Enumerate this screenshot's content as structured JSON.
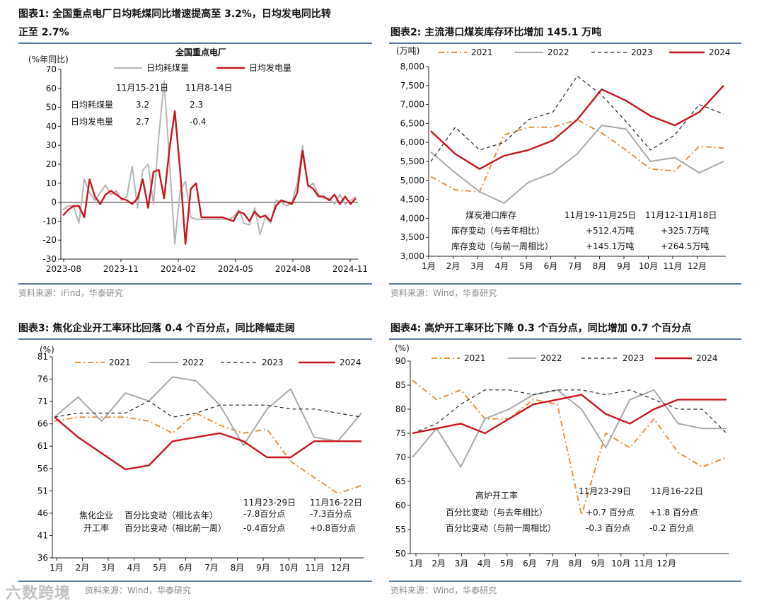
{
  "watermark": "六数跨境",
  "colors": {
    "y2021": "#e8903a",
    "y2022": "#a8a8a8",
    "y2023": "#222222",
    "y2024": "#c8161d",
    "coal": "#b5b5b5",
    "power": "#c8161d",
    "accent": "#5a7a9e"
  },
  "panels": [
    {
      "title_line1": "图表1:  全国重点电厂日均耗煤同比增速提高至 3.2%，日均发电同比转",
      "title_line2": "正至 2.7%",
      "source": "资料来源：iFind，华泰研究",
      "chart_data": {
        "type": "line",
        "title": "全国重点电厂",
        "ylabel": "(%年同比)",
        "ylim": [
          -30,
          70
        ],
        "yticks": [
          "70",
          "60",
          "50",
          "40",
          "30",
          "20",
          "10",
          "0",
          "-10",
          "-20",
          "-30"
        ],
        "xticks": [
          "2023-08",
          "2023-11",
          "2024-02",
          "2024-05",
          "2024-08",
          "2024-11"
        ],
        "series": [
          {
            "name": "日均耗煤量",
            "values": [
              -4,
              -2,
              -2,
              -11,
              12,
              5,
              1,
              5,
              9,
              4,
              6,
              1,
              3,
              19,
              -3,
              17,
              20,
              -1,
              35,
              64,
              22,
              -22,
              6,
              11,
              -8,
              -9,
              -9,
              -9,
              -9,
              -9,
              -9,
              -9,
              -8,
              -4,
              -11,
              -12,
              -3,
              -17,
              -8,
              -11,
              1,
              0,
              -2,
              0,
              10,
              30,
              8,
              10,
              4,
              2,
              2,
              -1,
              4,
              -1,
              1,
              3
            ]
          },
          {
            "name": "日均发电量",
            "values": [
              -7,
              -4,
              -2,
              -2,
              -8,
              12,
              3,
              -1,
              4,
              6,
              4,
              2,
              1,
              -1,
              2,
              12,
              -3,
              16,
              17,
              2,
              28,
              48,
              17,
              -22,
              7,
              10,
              -8,
              -8,
              -8,
              -8,
              -8,
              -9,
              -10,
              -5,
              -6,
              -10,
              -5,
              -8,
              -7,
              -10,
              -2,
              1,
              0,
              -1,
              5,
              27,
              9,
              7,
              3,
              3,
              1,
              4,
              -1,
              3,
              -1,
              2
            ]
          }
        ]
      },
      "annotations": {
        "col1": "11月15-21日",
        "col2": "11月8-14日",
        "row1": "日均耗煤量",
        "row2": "日均发电量",
        "v11": "3.2",
        "v12": "2.3",
        "v21": "2.7",
        "v22": "-0.4"
      }
    },
    {
      "title_line1": "图表2:  主流港口煤炭库存环比增加 145.1 万吨",
      "source": "资料来源：Wind，华泰研究",
      "chart_data": {
        "type": "line",
        "ylabel": "(万吨)",
        "ylim": [
          3000,
          8000
        ],
        "yticks": [
          "8,000",
          "7,500",
          "7,000",
          "6,500",
          "6,000",
          "5,500",
          "5,000",
          "4,500",
          "4,000",
          "3,500",
          "3,000"
        ],
        "xticks": [
          "1月",
          "2月",
          "3月",
          "4月",
          "5月",
          "6月",
          "7月",
          "8月",
          "9月",
          "10月",
          "11月",
          "12月"
        ],
        "series": [
          {
            "name": "2021",
            "values": [
              5100,
              4750,
              4700,
              6200,
              6400,
              6400,
              6600,
              6250,
              5800,
              5300,
              5250,
              5900,
              5850
            ]
          },
          {
            "name": "2022",
            "values": [
              5750,
              5200,
              4700,
              4400,
              4950,
              5200,
              5700,
              6450,
              6350,
              5500,
              5600,
              5200,
              5500
            ]
          },
          {
            "name": "2023",
            "values": [
              5500,
              6400,
              5800,
              6000,
              6600,
              6800,
              7750,
              7250,
              6550,
              5800,
              6200,
              7000,
              6750
            ]
          },
          {
            "name": "2024",
            "values": [
              6300,
              5700,
              5300,
              5650,
              5800,
              6050,
              6600,
              7400,
              7100,
              6700,
              6450,
              6800,
              7500
            ]
          }
        ]
      },
      "annotations": {
        "label": "煤炭港口库存",
        "col1": "11月19-11月25日",
        "col2": "11月12-11月18日",
        "row1": "库存变动（与去年相比）",
        "row2": "库存变动（与前一周相比）",
        "v11": "+512.4万吨",
        "v12": "+325.7万吨",
        "v21": "+145.1万吨",
        "v22": "+264.5万吨"
      }
    },
    {
      "title_line1": "图表3:  焦化企业开工率环比回落 0.4 个百分点，同比降幅走阔",
      "source": "资料来源：Wind，华泰研究",
      "chart_data": {
        "type": "line",
        "ylabel": "(%)",
        "ylim": [
          36,
          86
        ],
        "yticks": [
          "81",
          "76",
          "71",
          "66",
          "61",
          "56",
          "51",
          "46",
          "41",
          "36"
        ],
        "xticks": [
          "1月",
          "2月",
          "3月",
          "4月",
          "5月",
          "6月",
          "7月",
          "8月",
          "9月",
          "10月",
          "11月",
          "12月"
        ],
        "series": [
          {
            "name": "2021",
            "values": [
              70,
              71,
              71,
              71,
              70,
              67,
              72,
              69,
              67,
              68,
              60,
              56,
              52,
              54
            ]
          },
          {
            "name": "2022",
            "values": [
              71,
              76,
              70,
              77,
              75,
              81,
              80,
              74,
              64,
              73,
              78,
              66,
              65,
              72
            ]
          },
          {
            "name": "2023",
            "values": [
              71,
              72,
              72,
              72,
              75,
              71,
              72,
              74,
              74,
              74,
              73,
              73,
              72,
              71
            ]
          },
          {
            "name": "2024",
            "values": [
              71,
              66,
              62,
              58,
              59,
              65,
              66,
              67,
              65,
              61,
              61,
              65,
              65,
              65
            ]
          }
        ]
      },
      "annotations": {
        "row_label1": "焦化企业",
        "row_label2": "开工率",
        "col1": "11月23-29日",
        "col2": "11月16-22日",
        "row1": "百分比变动（相比去年）",
        "row2": "百分比变动（相比前一周）",
        "v11": "-7.8百分点",
        "v12": "-7.3百分点",
        "v21": "-0.4百分点",
        "v22": "+0.8百分点"
      }
    },
    {
      "title_line1": "图表4:  高炉开工率环比下降 0.3 个百分点，同比增加 0.7 个百分点",
      "source": "资料来源：Wind，华泰研究",
      "chart_data": {
        "type": "line",
        "ylabel": "(%)",
        "ylim": [
          50,
          90
        ],
        "yticks": [
          "90",
          "85",
          "80",
          "75",
          "70",
          "65",
          "60",
          "55",
          "50"
        ],
        "xticks": [
          "1月",
          "2月",
          "3月",
          "4月",
          "5月",
          "6月",
          "7月",
          "8月",
          "9月",
          "10月",
          "11月",
          "12月"
        ],
        "series": [
          {
            "name": "2021",
            "values": [
              86,
              82,
              84,
              78,
              78,
              82,
              81,
              58,
              75,
              72,
              78,
              71,
              68,
              70
            ]
          },
          {
            "name": "2022",
            "values": [
              70,
              76,
              68,
              78,
              80,
              83,
              84,
              80,
              72,
              82,
              84,
              77,
              76,
              76
            ]
          },
          {
            "name": "2023",
            "values": [
              75,
              77,
              81,
              84,
              84,
              83,
              84,
              84,
              83,
              84,
              82,
              80,
              80,
              75
            ]
          },
          {
            "name": "2024",
            "values": [
              75,
              76,
              77,
              75,
              78,
              81,
              82,
              83,
              79,
              77,
              80,
              82,
              82,
              82
            ]
          }
        ]
      },
      "annotations": {
        "label": "高炉开工率",
        "col1": "11月23-29日",
        "col2": "11月16-22日",
        "row1": "百分比变动（与去年相比）",
        "row2": "百分比变动（与前一周相比）",
        "v11": "+0.7 百分点",
        "v12": "+1.8 百分点",
        "v21": "-0.3 百分点",
        "v22": "-0.2 百分点"
      }
    }
  ]
}
